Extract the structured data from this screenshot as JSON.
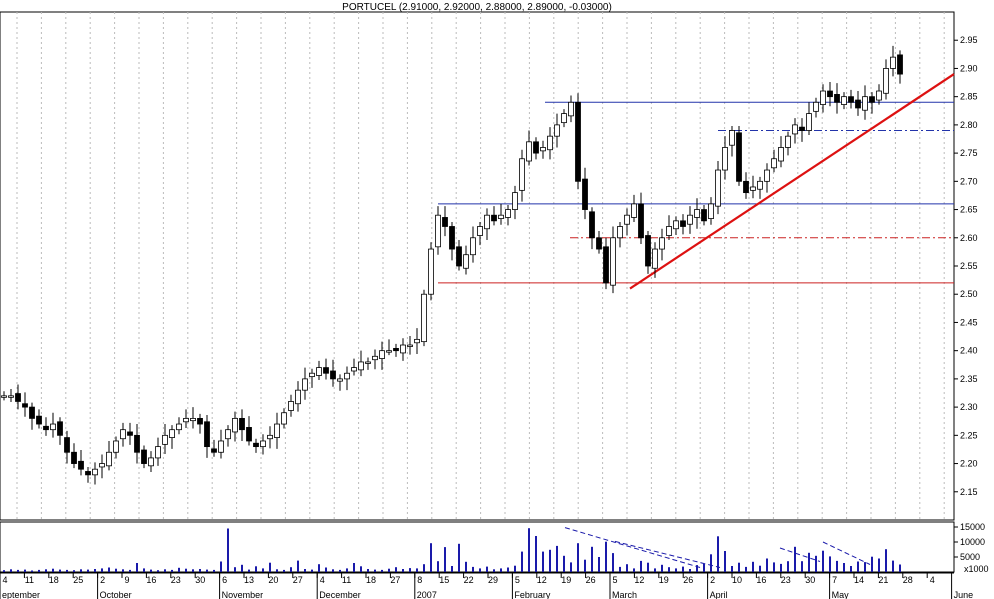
{
  "chart_data": {
    "type": "candlestick",
    "title": "PORTUCEL (2.91000, 2.92000, 2.88000, 2.89000, -0.03000)",
    "price_axis": {
      "ticks": [
        "2.15",
        "2.20",
        "2.25",
        "2.30",
        "2.35",
        "2.40",
        "2.45",
        "2.50",
        "2.55",
        "2.60",
        "2.65",
        "2.70",
        "2.75",
        "2.80",
        "2.85",
        "2.90",
        "2.95"
      ],
      "ylim": [
        2.1,
        3.0
      ]
    },
    "volume_axis": {
      "ticks": [
        "15000",
        "10000",
        "5000"
      ],
      "unit_label": "x1000",
      "ylim": [
        0,
        16000
      ]
    },
    "date_ticks": [
      "4",
      "11",
      "18",
      "25",
      "2",
      "9",
      "16",
      "23",
      "30",
      "6",
      "13",
      "20",
      "27",
      "4",
      "11",
      "18",
      "27",
      "8",
      "15",
      "22",
      "29",
      "5",
      "12",
      "19",
      "26",
      "5",
      "12",
      "19",
      "26",
      "2",
      "10",
      "16",
      "23",
      "30",
      "7",
      "14",
      "21",
      "28",
      "4"
    ],
    "month_labels": [
      "eptember",
      "October",
      "November",
      "December",
      "2007",
      "February",
      "March",
      "April",
      "May",
      "June"
    ],
    "month_positions": [
      0,
      4,
      9,
      13,
      17,
      21,
      25,
      29,
      34,
      39
    ],
    "closes": [
      2.32,
      2.32,
      2.31,
      2.3,
      2.28,
      2.27,
      2.26,
      2.27,
      2.25,
      2.22,
      2.2,
      2.19,
      2.18,
      2.19,
      2.2,
      2.22,
      2.24,
      2.26,
      2.25,
      2.22,
      2.2,
      2.21,
      2.23,
      2.25,
      2.26,
      2.27,
      2.28,
      2.28,
      2.27,
      2.23,
      2.22,
      2.24,
      2.26,
      2.28,
      2.26,
      2.24,
      2.23,
      2.24,
      2.25,
      2.27,
      2.29,
      2.31,
      2.33,
      2.35,
      2.36,
      2.37,
      2.36,
      2.35,
      2.35,
      2.36,
      2.37,
      2.38,
      2.38,
      2.39,
      2.4,
      2.4,
      2.4,
      2.41,
      2.41,
      2.42,
      2.5,
      2.58,
      2.64,
      2.62,
      2.58,
      2.55,
      2.57,
      2.6,
      2.62,
      2.64,
      2.63,
      2.64,
      2.65,
      2.68,
      2.74,
      2.77,
      2.75,
      2.76,
      2.78,
      2.8,
      2.82,
      2.84,
      2.7,
      2.65,
      2.6,
      2.58,
      2.52,
      2.6,
      2.62,
      2.64,
      2.66,
      2.6,
      2.55,
      2.58,
      2.6,
      2.62,
      2.63,
      2.62,
      2.64,
      2.65,
      2.63,
      2.66,
      2.72,
      2.76,
      2.79,
      2.7,
      2.68,
      2.69,
      2.7,
      2.72,
      2.74,
      2.76,
      2.78,
      2.8,
      2.79,
      2.82,
      2.84,
      2.86,
      2.85,
      2.84,
      2.85,
      2.84,
      2.83,
      2.85,
      2.84,
      2.86,
      2.9,
      2.92,
      2.89
    ],
    "volumes": [
      600,
      900,
      700,
      800,
      500,
      700,
      900,
      1100,
      800,
      700,
      600,
      900,
      800,
      1000,
      1200,
      1500,
      1100,
      900,
      700,
      3000,
      1200,
      800,
      600,
      900,
      700,
      1400,
      1100,
      900,
      1000,
      800,
      700,
      3500,
      14500,
      1600,
      2400,
      800,
      1900,
      1200,
      3100,
      900,
      700,
      1600,
      3800,
      1000,
      800,
      2600,
      1500,
      900,
      700,
      1200,
      3000,
      1900,
      1000,
      800,
      700,
      1100,
      1600,
      1000,
      1300,
      1200,
      2600,
      9600,
      3600,
      8300,
      2000,
      9400,
      3400,
      1700,
      1200,
      1800,
      900,
      1200,
      1500,
      2100,
      6800,
      14600,
      12000,
      6800,
      7400,
      8700,
      5400,
      3200,
      9600,
      4100,
      8400,
      5000,
      10100,
      6300,
      1700,
      2600,
      1200,
      3700,
      3100,
      1200,
      2400,
      1600,
      1200,
      1800,
      1000,
      2300,
      2700,
      5900,
      11900,
      7000,
      2000,
      3100,
      1700,
      3400,
      2100,
      4500,
      3200,
      2700,
      3600,
      8400,
      3600,
      6400,
      5400,
      7100,
      5200,
      3700,
      3000,
      2000,
      3500,
      3300,
      5100,
      4500,
      7600,
      3800,
      2500
    ]
  }
}
